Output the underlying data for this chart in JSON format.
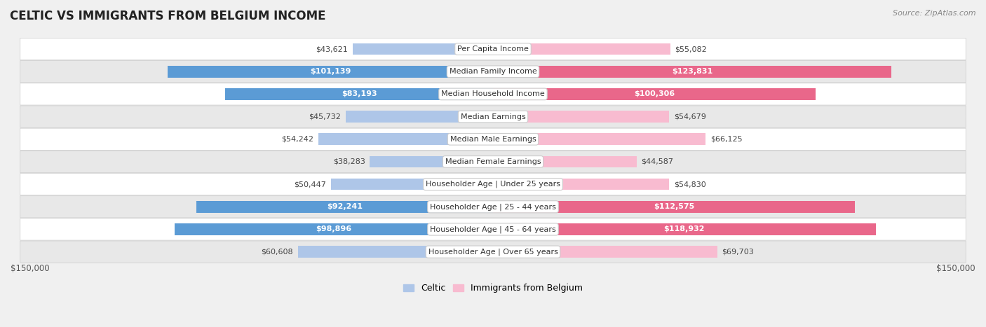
{
  "title": "CELTIC VS IMMIGRANTS FROM BELGIUM INCOME",
  "source": "Source: ZipAtlas.com",
  "categories": [
    "Per Capita Income",
    "Median Family Income",
    "Median Household Income",
    "Median Earnings",
    "Median Male Earnings",
    "Median Female Earnings",
    "Householder Age | Under 25 years",
    "Householder Age | 25 - 44 years",
    "Householder Age | 45 - 64 years",
    "Householder Age | Over 65 years"
  ],
  "celtic_values": [
    43621,
    101139,
    83193,
    45732,
    54242,
    38283,
    50447,
    92241,
    98896,
    60608
  ],
  "belgium_values": [
    55082,
    123831,
    100306,
    54679,
    66125,
    44587,
    54830,
    112575,
    118932,
    69703
  ],
  "celtic_labels": [
    "$43,621",
    "$101,139",
    "$83,193",
    "$45,732",
    "$54,242",
    "$38,283",
    "$50,447",
    "$92,241",
    "$98,896",
    "$60,608"
  ],
  "belgium_labels": [
    "$55,082",
    "$123,831",
    "$100,306",
    "$54,679",
    "$66,125",
    "$44,587",
    "$54,830",
    "$112,575",
    "$118,932",
    "$69,703"
  ],
  "max_value": 150000,
  "celtic_color_light": "#aec6e8",
  "celtic_color_dark": "#5b9bd5",
  "belgium_color_light": "#f8bbd0",
  "belgium_color_dark": "#e9678a",
  "background_color": "#f0f0f0",
  "row_color_light": "#ffffff",
  "row_color_dark": "#e8e8e8",
  "bar_height": 0.52,
  "inside_label_threshold": 70000,
  "legend_celtic": "Celtic",
  "legend_belgium": "Immigrants from Belgium",
  "x_label_left": "$150,000",
  "x_label_right": "$150,000",
  "title_fontsize": 12,
  "label_fontsize": 8,
  "source_fontsize": 8
}
